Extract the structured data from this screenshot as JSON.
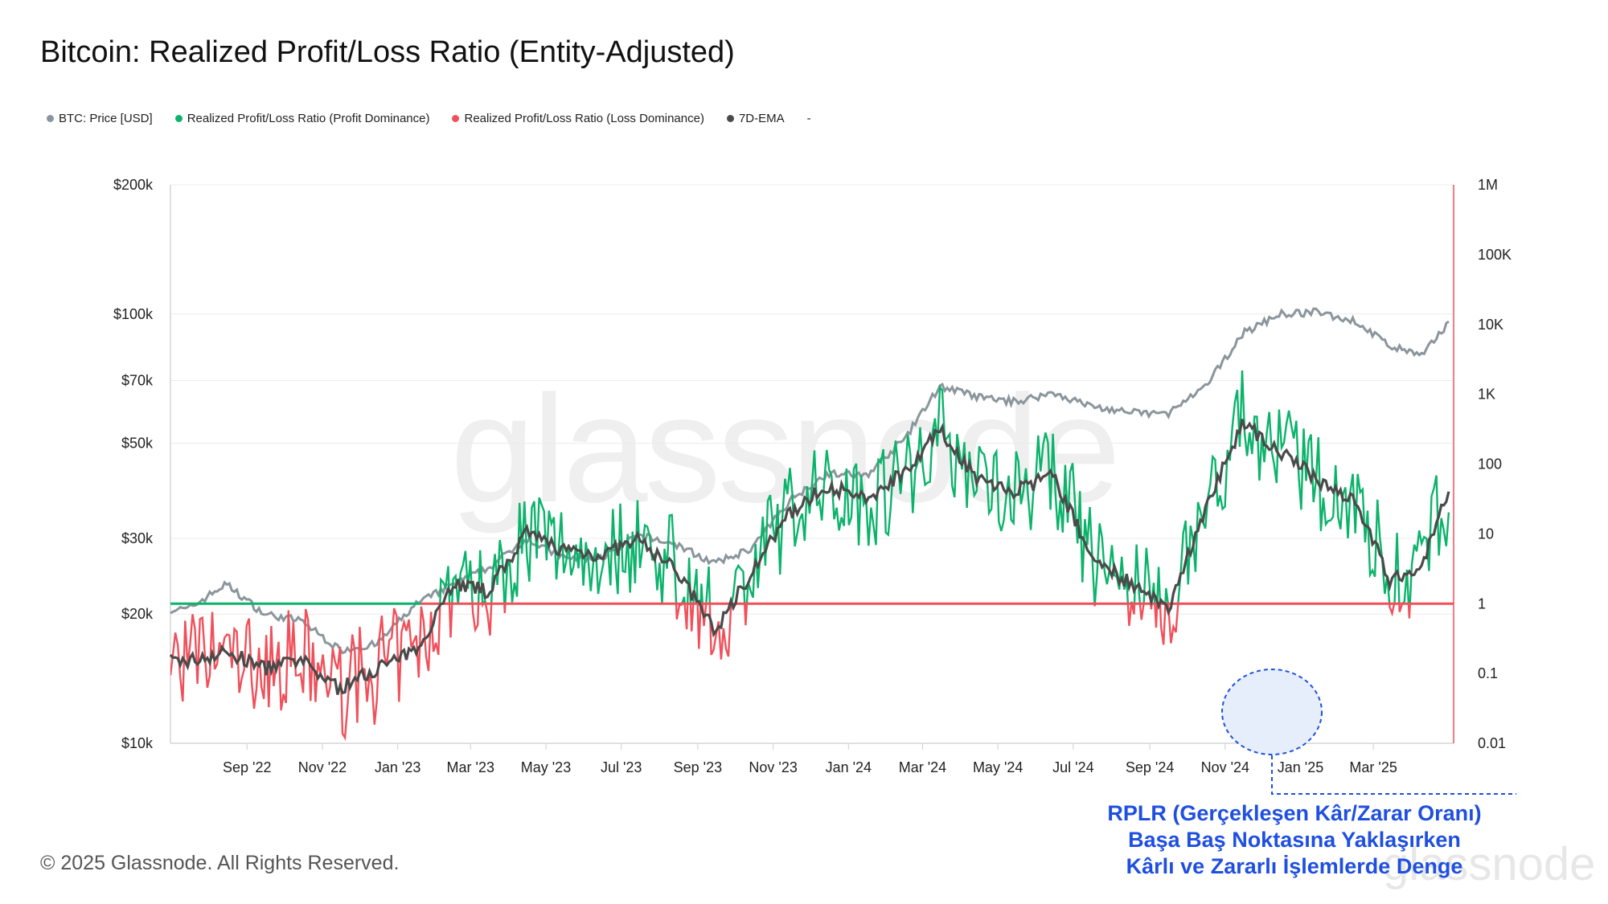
{
  "title": "Bitcoin: Realized Profit/Loss Ratio (Entity-Adjusted)",
  "legend": [
    {
      "label": "BTC: Price [USD]",
      "color": "#8a969c"
    },
    {
      "label": "Realized Profit/Loss Ratio (Profit Dominance)",
      "color": "#0bb36b"
    },
    {
      "label": "Realized Profit/Loss Ratio (Loss Dominance)",
      "color": "#f0505a"
    },
    {
      "label": "7D-EMA",
      "color": "#4a4a4a"
    },
    {
      "label": "-",
      "color": ""
    }
  ],
  "watermark": "glassnode",
  "copyright": "© 2025 Glassnode. All Rights Reserved.",
  "annotation": {
    "line1": "RPLR (Gerçekleşen Kâr/Zarar Oranı)",
    "line2": "Başa Baş Noktasına Yaklaşırken",
    "line3": "Kârlı ve Zararlı İşlemlerde Denge"
  },
  "colors": {
    "price": "#8a969c",
    "profit": "#0bb36b",
    "loss": "#f0505a",
    "ema": "#4a4a4a",
    "annotation": "#1f4fe0"
  },
  "chart_data": {
    "type": "line",
    "title": "Bitcoin: Realized Profit/Loss Ratio (Entity-Adjusted)",
    "x_ticks": [
      "Sep '22",
      "Nov '22",
      "Jan '23",
      "Mar '23",
      "May '23",
      "Jul '23",
      "Sep '23",
      "Nov '23",
      "Jan '24",
      "Mar '24",
      "May '24",
      "Jul '24",
      "Sep '24",
      "Nov '24",
      "Jan '25",
      "Mar '25"
    ],
    "y_left": {
      "scale": "log",
      "range": [
        10000,
        200000
      ],
      "ticks": [
        "$10k",
        "$20k",
        "$30k",
        "$50k",
        "$70k",
        "$100k",
        "$200k"
      ]
    },
    "y_right": {
      "scale": "log",
      "range": [
        0.01,
        1000000
      ],
      "ticks": [
        "0.01",
        "0.1",
        "1",
        "10",
        "100",
        "1K",
        "10K",
        "100K",
        "1M"
      ]
    },
    "reference_line": 1,
    "series": [
      {
        "name": "BTC: Price [USD]",
        "axis": "left",
        "x": [
          "2022-07-15",
          "2022-08-15",
          "2022-09-15",
          "2022-10-15",
          "2022-11-15",
          "2022-12-15",
          "2023-01-15",
          "2023-02-15",
          "2023-03-15",
          "2023-04-15",
          "2023-05-15",
          "2023-06-15",
          "2023-07-15",
          "2023-08-15",
          "2023-09-15",
          "2023-10-15",
          "2023-11-15",
          "2023-12-15",
          "2024-01-15",
          "2024-02-15",
          "2024-03-15",
          "2024-04-15",
          "2024-05-15",
          "2024-06-15",
          "2024-07-15",
          "2024-08-15",
          "2024-09-15",
          "2024-10-15",
          "2024-11-15",
          "2024-12-15",
          "2025-01-15",
          "2025-02-15",
          "2025-03-15",
          "2025-04-10",
          "2025-05-01"
        ],
        "values": [
          20500,
          23500,
          20000,
          19300,
          16500,
          17000,
          21000,
          23500,
          25500,
          30000,
          27000,
          27000,
          30500,
          29000,
          26200,
          28500,
          37000,
          42500,
          42000,
          51000,
          68000,
          64000,
          62500,
          65500,
          61000,
          59000,
          58500,
          67000,
          90000,
          100000,
          101000,
          96000,
          84000,
          80000,
          96000
        ]
      },
      {
        "name": "7D-EMA",
        "axis": "right",
        "x": [
          "2022-07-15",
          "2022-08-15",
          "2022-09-15",
          "2022-10-15",
          "2022-11-15",
          "2022-12-15",
          "2023-01-15",
          "2023-02-15",
          "2023-03-15",
          "2023-04-15",
          "2023-05-15",
          "2023-06-15",
          "2023-07-15",
          "2023-08-15",
          "2023-09-15",
          "2023-10-15",
          "2023-11-15",
          "2023-12-15",
          "2024-01-15",
          "2024-02-15",
          "2024-03-15",
          "2024-04-15",
          "2024-05-15",
          "2024-06-15",
          "2024-07-15",
          "2024-08-15",
          "2024-09-15",
          "2024-10-15",
          "2024-11-15",
          "2024-12-15",
          "2025-01-15",
          "2025-02-15",
          "2025-03-15",
          "2025-04-10",
          "2025-05-01"
        ],
        "values": [
          0.15,
          0.2,
          0.12,
          0.15,
          0.06,
          0.12,
          0.2,
          2,
          1.5,
          10,
          6,
          5,
          8,
          3,
          0.4,
          3,
          20,
          50,
          30,
          80,
          300,
          60,
          40,
          70,
          5,
          2,
          0.8,
          20,
          400,
          150,
          60,
          30,
          2,
          4,
          40
        ]
      }
    ]
  }
}
